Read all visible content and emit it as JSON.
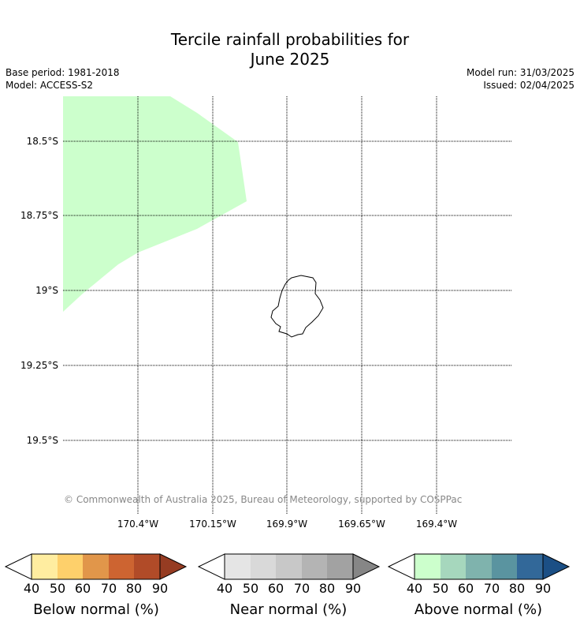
{
  "header": {
    "title_line1": "Tercile rainfall probabilities for",
    "title_line2": "June 2025",
    "base_period": "Base period: 1981-2018",
    "model": "Model: ACCESS-S2",
    "model_run": "Model run: 31/03/2025",
    "issued": "Issued: 02/04/2025"
  },
  "map": {
    "lat_labels": [
      "18.5°S",
      "18.75°S",
      "19°S",
      "19.25°S",
      "19.5°S"
    ],
    "lon_labels": [
      "170.4°W",
      "170.15°W",
      "169.9°W",
      "169.65°W",
      "169.4°W"
    ],
    "region_color": "#ccffcc",
    "region_category": "Above normal 40-50%",
    "island": "Niue",
    "copyright": "© Commonwealth of Australia 2025, Bureau of Meteorology, supported by COSPPac"
  },
  "legends": [
    {
      "title": "Below normal (%)",
      "ticks": [
        "40",
        "50",
        "60",
        "70",
        "80",
        "90"
      ],
      "colors": [
        "#ffffff",
        "#ffeda0",
        "#fed06b",
        "#e1964a",
        "#cd6431",
        "#b14b28",
        "#963c22"
      ]
    },
    {
      "title": "Near normal (%)",
      "ticks": [
        "40",
        "50",
        "60",
        "70",
        "80",
        "90"
      ],
      "colors": [
        "#ffffff",
        "#e5e5e5",
        "#d9d9d9",
        "#c8c8c8",
        "#b4b4b4",
        "#a2a2a2",
        "#868686"
      ]
    },
    {
      "title": "Above normal (%)",
      "ticks": [
        "40",
        "50",
        "60",
        "70",
        "80",
        "90"
      ],
      "colors": [
        "#ffffff",
        "#ccffcc",
        "#a6d7bd",
        "#7fb3ad",
        "#5a94a0",
        "#326899",
        "#1b4f85"
      ]
    }
  ]
}
